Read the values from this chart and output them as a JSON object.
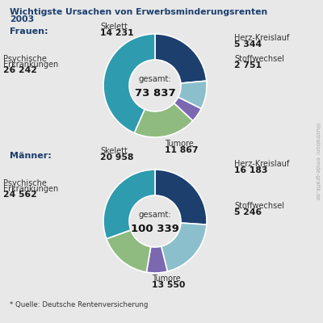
{
  "title_line1": "Wichtigste Ursachen von Erwerbsminderungsrenten",
  "title_line2": "2003",
  "background_color": "#e8e8e8",
  "frauen": {
    "label": "Frauen:",
    "gesamt": "73 837",
    "values": [
      14231,
      5344,
      2751,
      11867,
      26242
    ],
    "colors": [
      "#1c3f6e",
      "#8bbfcc",
      "#7b68b0",
      "#8fba80",
      "#2e9baf"
    ],
    "labels_values": [
      "14 231",
      "5 344",
      "2 751",
      "11 867",
      "26 242"
    ],
    "cat_names": [
      "Skelett",
      "Herz-Kreislauf",
      "Stoffwechsel",
      "Tumore",
      "Psychische\nErkrankungen"
    ]
  },
  "maenner": {
    "label": "Männer:",
    "gesamt": "100 339",
    "values": [
      20958,
      16183,
      5246,
      13550,
      24562
    ],
    "colors": [
      "#1c3f6e",
      "#8bbfcc",
      "#7b68b0",
      "#8fba80",
      "#2e9baf"
    ],
    "labels_values": [
      "20 958",
      "16 183",
      "5 246",
      "13 550",
      "24 562"
    ],
    "cat_names": [
      "Skelett",
      "Herz-Kreislauf",
      "Stoffwechsel",
      "Tumore",
      "Psychische\nErkrankungen"
    ]
  },
  "source": "* Quelle: Deutsche Rentenversicherung",
  "side_text": "Illustration: emde-grafik.de",
  "title_color": "#1c3f6e",
  "label_color": "#1c3f6e",
  "text_color": "#1a1a1a",
  "cat_color": "#333333"
}
